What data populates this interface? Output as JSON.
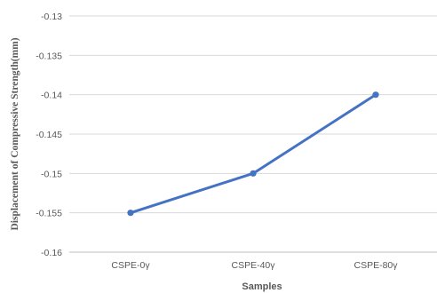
{
  "chart_data": {
    "type": "line",
    "xlabel": "Samples",
    "ylabel": "Displacement of Compressive Strength(mm)",
    "categories": [
      "CSPE-0γ",
      "CSPE-40γ",
      "CSPE-80γ"
    ],
    "series": [
      {
        "values": [
          -0.155,
          -0.15,
          -0.14
        ]
      }
    ],
    "ylim": [
      -0.16,
      -0.13
    ],
    "yticks": [
      -0.13,
      -0.135,
      -0.14,
      -0.145,
      -0.15,
      -0.155,
      -0.16
    ],
    "ytick_labels": [
      "-0.13",
      "-0.135",
      "-0.14",
      "-0.145",
      "-0.15",
      "-0.155",
      "-0.16"
    ],
    "grid": "horizontal",
    "colors": {
      "series": "#4472c4",
      "grid": "#d9d9d9",
      "text": "#595959"
    }
  }
}
